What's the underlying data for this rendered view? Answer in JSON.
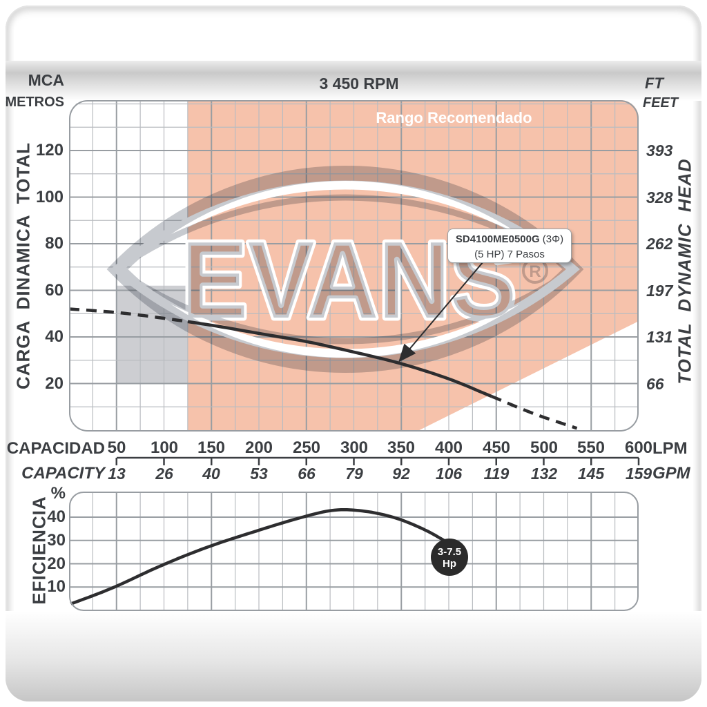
{
  "sheet": {
    "title_rpm": "3 450 RPM",
    "recommended_label": "Rango Recomendado"
  },
  "top_chart": {
    "unit_left_1": "MCA",
    "unit_left_2": "METROS",
    "unit_right_1": "FT",
    "unit_right_2": "FEET",
    "axis_left_label": "CARGA DINAMICA TOTAL",
    "axis_right_label": "TOTAL DYNAMIC HEAD",
    "ticks_metros": [
      120,
      100,
      80,
      60,
      40,
      20
    ],
    "ticks_feet": [
      393,
      328,
      262,
      197,
      131,
      66
    ]
  },
  "capacity_axis": {
    "row1_label": "CAPACIDAD",
    "row1_unit": "LPM",
    "row1_values": [
      50,
      100,
      150,
      200,
      250,
      300,
      350,
      400,
      450,
      500,
      550,
      600
    ],
    "row2_label": "CAPACITY",
    "row2_unit": "GPM",
    "row2_values": [
      13,
      26,
      40,
      53,
      66,
      79,
      92,
      106,
      119,
      132,
      145,
      159
    ]
  },
  "efficiency_chart": {
    "axis_label": "EFICIENCIA",
    "unit": "%",
    "ticks": [
      40,
      30,
      20,
      10
    ],
    "hp_badge_line1": "3-7.5",
    "hp_badge_line2": "Hp"
  },
  "pump_label": {
    "model": "SD4100ME0500G",
    "phase": " (3Φ)",
    "line2": "(5 HP) 7 Pasos"
  },
  "watermark": {
    "text": "EVANS",
    "reg": "®"
  },
  "colors": {
    "recommended_fill": "#f6c2ab",
    "gray_region": "#cdced2",
    "curve": "#2d2d2f",
    "grid_minor": "#b9bcc0",
    "grid_major": "#989da2",
    "text": "#3b3e42",
    "badge_bg": "#2b2b2b",
    "watermark_gray": "#c7cacf"
  },
  "chart_data": [
    {
      "type": "line",
      "name": "head_vs_capacity",
      "title": "3 450 RPM",
      "xlabel": "CAPACIDAD / CAPACITY",
      "ylabel": "CARGA DINAMICA TOTAL (MCA METROS / FT FEET)",
      "x_unit": "LPM",
      "y_unit": "m",
      "xlim": [
        0,
        600
      ],
      "ylim": [
        0,
        142
      ],
      "grid": true,
      "series": [
        {
          "name": "SD4100ME0500G (3Φ) (5 HP) 7 Pasos",
          "points_lpm_m": [
            [
              0,
              52
            ],
            [
              50,
              50.5
            ],
            [
              100,
              48
            ],
            [
              150,
              45
            ],
            [
              200,
              41.5
            ],
            [
              250,
              38
            ],
            [
              300,
              33.5
            ],
            [
              350,
              28.5
            ],
            [
              400,
              22
            ],
            [
              445,
              14.5
            ],
            [
              490,
              7
            ],
            [
              535,
              0.8
            ]
          ],
          "solid_range_lpm": [
            122,
            445
          ],
          "dashed_outside": true
        }
      ],
      "regions": [
        {
          "name": "rango_recomendado",
          "shape": "polygon",
          "points_lpm_m": [
            [
              125,
              142
            ],
            [
              600,
              142
            ],
            [
              600,
              46.8
            ],
            [
              369,
              0
            ],
            [
              125,
              0
            ]
          ]
        },
        {
          "name": "gray_region",
          "shape": "rect",
          "lpm": [
            50,
            125
          ],
          "m": [
            20,
            62
          ]
        }
      ]
    },
    {
      "type": "line",
      "name": "efficiency_vs_capacity",
      "xlabel": "CAPACIDAD / CAPACITY",
      "ylabel": "EFICIENCIA %",
      "x_unit": "LPM",
      "y_unit": "%",
      "xlim": [
        0,
        600
      ],
      "ylim": [
        0,
        51
      ],
      "grid": true,
      "series": [
        {
          "name": "3-7.5 Hp",
          "points_lpm_pct": [
            [
              0,
              2.5
            ],
            [
              45,
              9.5
            ],
            [
              96,
              19
            ],
            [
              145,
              27
            ],
            [
              197,
              34
            ],
            [
              246,
              40
            ],
            [
              280,
              43
            ],
            [
              312,
              42.5
            ],
            [
              345,
              39.5
            ],
            [
              375,
              34.5
            ],
            [
              397,
              29.5
            ]
          ]
        }
      ]
    }
  ]
}
